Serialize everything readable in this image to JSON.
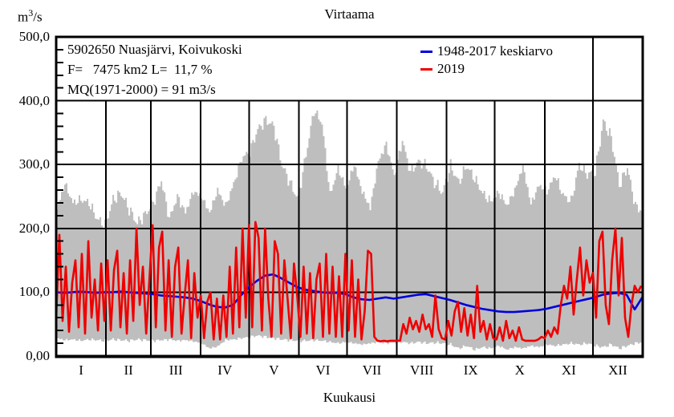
{
  "title": "Virtaama",
  "y_axis": {
    "unit_prefix": "m",
    "unit_exponent": "3",
    "unit_suffix": "/s",
    "ticks": [
      "500,0",
      "400,0",
      "300,0",
      "200,0",
      "100,0",
      "0,00"
    ]
  },
  "x_axis": {
    "label": "Kuukausi",
    "months": [
      "I",
      "II",
      "III",
      "IV",
      "V",
      "VI",
      "VII",
      "VIII",
      "IX",
      "X",
      "XI",
      "XII"
    ]
  },
  "info_box": {
    "lines": [
      "5902650 Nuasjärvi, Koivukoski",
      "F=   7475 km2 L=  11,7 %",
      "MQ(1971-2000) = 91 m3/s"
    ]
  },
  "legend": [
    {
      "label": "1948-2017 keskiarvo",
      "color": "#0000dd"
    },
    {
      "label": "2019",
      "color": "#ee0000"
    }
  ],
  "colors": {
    "band": "#bebebe",
    "mean_line": "#0000dd",
    "year_line": "#ee0000",
    "grid": "#000000",
    "background": "#ffffff"
  },
  "chart_data": {
    "type": "line",
    "title": "Virtaama",
    "xlabel": "Kuukausi",
    "ylabel": "m3/s",
    "ylim": [
      0,
      500
    ],
    "yticks": [
      500,
      400,
      300,
      200,
      100,
      0
    ],
    "ytick_labels": [
      "500,0",
      "400,0",
      "300,0",
      "200,0",
      "100,0",
      "0,00"
    ],
    "grid": "on",
    "legend_position": "top-inside",
    "x_unit": "day-of-year",
    "days_in_year": 365,
    "month_boundaries": [
      0,
      31,
      59,
      90,
      120,
      151,
      181,
      212,
      243,
      273,
      304,
      334,
      365
    ],
    "month_labels": [
      "I",
      "II",
      "III",
      "IV",
      "V",
      "VI",
      "VII",
      "VIII",
      "IX",
      "X",
      "XI",
      "XII"
    ],
    "series": [
      {
        "name": "1948-2017 min-max range",
        "type": "band",
        "color": "#bebebe",
        "x_step_days": 5,
        "max": [
          230,
          270,
          240,
          245,
          240,
          215,
          205,
          245,
          255,
          230,
          208,
          222,
          240,
          275,
          215,
          250,
          225,
          258,
          250,
          225,
          260,
          235,
          270,
          310,
          320,
          355,
          370,
          360,
          300,
          272,
          246,
          315,
          385,
          365,
          252,
          295,
          262,
          300,
          258,
          232,
          305,
          332,
          282,
          338,
          288,
          305,
          298,
          272,
          256,
          298,
          272,
          298,
          278,
          255,
          242,
          256,
          236,
          260,
          298,
          238,
          268,
          258,
          283,
          252,
          242,
          300,
          285,
          288,
          368,
          342,
          268,
          295,
          235,
          225
        ],
        "min": [
          28,
          25,
          26,
          24,
          26,
          25,
          24,
          26,
          25,
          24,
          26,
          25,
          24,
          25,
          26,
          24,
          25,
          23,
          20,
          12,
          15,
          25,
          26,
          28,
          30,
          32,
          30,
          28,
          26,
          25,
          24,
          24,
          25,
          24,
          22,
          20,
          22,
          20,
          18,
          20,
          22,
          20,
          21,
          22,
          20,
          22,
          20,
          21,
          20,
          18,
          12,
          16,
          10,
          14,
          12,
          16,
          10,
          14,
          12,
          16,
          14,
          18,
          16,
          18,
          20,
          18,
          20,
          16,
          14,
          18,
          12,
          16,
          20,
          22
        ]
      },
      {
        "name": "1948-2017 keskiarvo",
        "type": "line",
        "color": "#0000dd",
        "x_step_days": 5,
        "values": [
          100,
          99,
          100,
          101,
          100,
          99,
          100,
          100,
          101,
          100,
          99,
          98,
          97,
          95,
          94,
          93,
          92,
          90,
          86,
          81,
          77,
          76,
          80,
          95,
          108,
          118,
          126,
          128,
          122,
          115,
          108,
          104,
          102,
          100,
          99,
          99,
          97,
          92,
          89,
          88,
          90,
          92,
          90,
          92,
          94,
          96,
          97,
          94,
          91,
          88,
          84,
          80,
          77,
          74,
          72,
          70,
          69,
          69,
          70,
          71,
          72,
          74,
          77,
          80,
          83,
          86,
          89,
          92,
          96,
          98,
          99,
          96,
          73,
          93
        ]
      },
      {
        "name": "2019",
        "type": "line",
        "color": "#ee0000",
        "x_step_days": 2,
        "values": [
          60,
          190,
          55,
          140,
          38,
          115,
          150,
          45,
          160,
          35,
          180,
          60,
          120,
          40,
          145,
          55,
          150,
          40,
          135,
          165,
          45,
          130,
          35,
          150,
          55,
          200,
          80,
          140,
          35,
          120,
          205,
          45,
          170,
          195,
          40,
          150,
          30,
          140,
          170,
          35,
          95,
          150,
          28,
          130,
          60,
          95,
          28,
          85,
          100,
          26,
          90,
          26,
          95,
          30,
          140,
          35,
          170,
          45,
          200,
          60,
          205,
          45,
          210,
          185,
          40,
          200,
          90,
          30,
          180,
          160,
          35,
          150,
          90,
          28,
          145,
          95,
          30,
          140,
          35,
          130,
          28,
          120,
          145,
          30,
          160,
          35,
          140,
          30,
          125,
          30,
          160,
          40,
          150,
          30,
          120,
          26,
          70,
          165,
          160,
          30,
          24,
          23,
          24,
          23,
          24,
          24,
          24,
          24,
          50,
          35,
          60,
          42,
          55,
          38,
          65,
          42,
          50,
          30,
          95,
          42,
          28,
          26,
          55,
          32,
          70,
          85,
          38,
          75,
          32,
          65,
          28,
          110,
          38,
          55,
          26,
          50,
          28,
          26,
          45,
          24,
          55,
          28,
          40,
          24,
          45,
          26,
          24,
          24,
          24,
          24,
          26,
          30,
          28,
          40,
          30,
          45,
          35,
          80,
          110,
          90,
          140,
          65,
          120,
          170,
          95,
          150,
          115,
          130,
          60,
          180,
          195,
          80,
          50,
          150,
          200,
          95,
          185,
          60,
          30,
          80,
          110,
          100,
          110
        ]
      }
    ]
  }
}
